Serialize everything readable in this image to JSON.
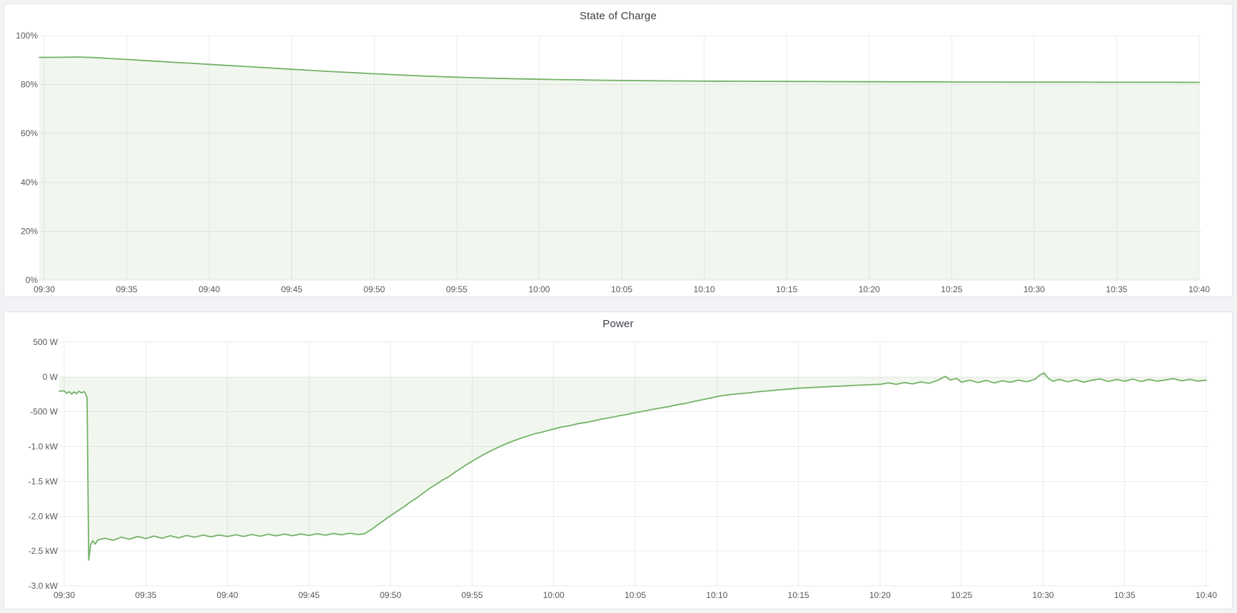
{
  "page": {
    "background_color": "#f2f3f5"
  },
  "panel_style": {
    "background_color": "#ffffff",
    "border_color": "#e0e3e8",
    "title_color": "#3a3f46",
    "tick_color": "#55595f",
    "grid_color": "#eaebed"
  },
  "chart_data": [
    {
      "type": "area",
      "title": "State of Charge",
      "xlabel": "",
      "ylabel": "",
      "unit": "%",
      "legend": "none",
      "grid": true,
      "ylim": [
        0,
        100
      ],
      "x_minutes_domain": [
        -0.3,
        70
      ],
      "line_color": "#73b266",
      "fill_color": "rgba(115,178,102,0.10)",
      "x_ticks": [
        {
          "t": 0,
          "label": "09:30"
        },
        {
          "t": 5,
          "label": "09:35"
        },
        {
          "t": 10,
          "label": "09:40"
        },
        {
          "t": 15,
          "label": "09:45"
        },
        {
          "t": 20,
          "label": "09:50"
        },
        {
          "t": 25,
          "label": "09:55"
        },
        {
          "t": 30,
          "label": "10:00"
        },
        {
          "t": 35,
          "label": "10:05"
        },
        {
          "t": 40,
          "label": "10:10"
        },
        {
          "t": 45,
          "label": "10:15"
        },
        {
          "t": 50,
          "label": "10:20"
        },
        {
          "t": 55,
          "label": "10:25"
        },
        {
          "t": 60,
          "label": "10:30"
        },
        {
          "t": 65,
          "label": "10:35"
        },
        {
          "t": 70,
          "label": "10:40"
        }
      ],
      "y_ticks": [
        {
          "value": 100,
          "label": "100%"
        },
        {
          "value": 80,
          "label": "80%"
        },
        {
          "value": 60,
          "label": "60%"
        },
        {
          "value": 40,
          "label": "40%"
        },
        {
          "value": 20,
          "label": "20%"
        },
        {
          "value": 0,
          "label": "0%"
        }
      ],
      "series": [
        {
          "name": "State of Charge",
          "points": [
            [
              -0.3,
              91.1
            ],
            [
              0,
              91.1
            ],
            [
              1,
              91.15
            ],
            [
              2,
              91.25
            ],
            [
              3,
              91.05
            ],
            [
              4,
              90.65
            ],
            [
              5,
              90.25
            ],
            [
              6,
              89.85
            ],
            [
              7,
              89.45
            ],
            [
              8,
              89.05
            ],
            [
              9,
              88.65
            ],
            [
              10,
              88.25
            ],
            [
              11,
              87.85
            ],
            [
              12,
              87.45
            ],
            [
              13,
              87.05
            ],
            [
              14,
              86.65
            ],
            [
              15,
              86.25
            ],
            [
              16,
              85.85
            ],
            [
              17,
              85.45
            ],
            [
              18,
              85.1
            ],
            [
              19,
              84.75
            ],
            [
              20,
              84.4
            ],
            [
              21,
              84.1
            ],
            [
              22,
              83.8
            ],
            [
              23,
              83.5
            ],
            [
              24,
              83.25
            ],
            [
              25,
              83.0
            ],
            [
              26,
              82.8
            ],
            [
              27,
              82.6
            ],
            [
              28,
              82.45
            ],
            [
              29,
              82.3
            ],
            [
              30,
              82.15
            ],
            [
              31,
              82.05
            ],
            [
              32,
              81.95
            ],
            [
              33,
              81.85
            ],
            [
              34,
              81.75
            ],
            [
              35,
              81.65
            ],
            [
              36,
              81.6
            ],
            [
              37,
              81.55
            ],
            [
              38,
              81.5
            ],
            [
              39,
              81.45
            ],
            [
              40,
              81.4
            ],
            [
              42,
              81.35
            ],
            [
              44,
              81.3
            ],
            [
              46,
              81.25
            ],
            [
              48,
              81.2
            ],
            [
              50,
              81.15
            ],
            [
              52,
              81.1
            ],
            [
              54,
              81.08
            ],
            [
              56,
              81.05
            ],
            [
              58,
              81.02
            ],
            [
              60,
              81.0
            ],
            [
              62,
              80.98
            ],
            [
              64,
              80.96
            ],
            [
              66,
              80.94
            ],
            [
              68,
              80.92
            ],
            [
              70,
              80.9
            ]
          ]
        }
      ]
    },
    {
      "type": "area",
      "title": "Power",
      "xlabel": "",
      "ylabel": "",
      "unit": "W",
      "legend": "none",
      "grid": true,
      "ylim": [
        -3000,
        500
      ],
      "x_minutes_domain": [
        -0.3,
        70
      ],
      "line_color": "#73b266",
      "fill_color": "rgba(115,178,102,0.10)",
      "x_ticks": [
        {
          "t": 0,
          "label": "09:30"
        },
        {
          "t": 5,
          "label": "09:35"
        },
        {
          "t": 10,
          "label": "09:40"
        },
        {
          "t": 15,
          "label": "09:45"
        },
        {
          "t": 20,
          "label": "09:50"
        },
        {
          "t": 25,
          "label": "09:55"
        },
        {
          "t": 30,
          "label": "10:00"
        },
        {
          "t": 35,
          "label": "10:05"
        },
        {
          "t": 40,
          "label": "10:10"
        },
        {
          "t": 45,
          "label": "10:15"
        },
        {
          "t": 50,
          "label": "10:20"
        },
        {
          "t": 55,
          "label": "10:25"
        },
        {
          "t": 60,
          "label": "10:30"
        },
        {
          "t": 65,
          "label": "10:35"
        },
        {
          "t": 70,
          "label": "10:40"
        }
      ],
      "y_ticks": [
        {
          "value": 500,
          "label": "500 W"
        },
        {
          "value": 0,
          "label": "0 W"
        },
        {
          "value": -500,
          "label": "-500 W"
        },
        {
          "value": -1000,
          "label": "-1.0 kW"
        },
        {
          "value": -1500,
          "label": "-1.5 kW"
        },
        {
          "value": -2000,
          "label": "-2.0 kW"
        },
        {
          "value": -2500,
          "label": "-2.5 kW"
        },
        {
          "value": -3000,
          "label": "-3.0 kW"
        }
      ],
      "series": [
        {
          "name": "Power",
          "points": [
            [
              -0.3,
              -205
            ],
            [
              0,
              -200
            ],
            [
              0.15,
              -235
            ],
            [
              0.3,
              -210
            ],
            [
              0.45,
              -245
            ],
            [
              0.6,
              -215
            ],
            [
              0.75,
              -240
            ],
            [
              0.9,
              -205
            ],
            [
              1.05,
              -230
            ],
            [
              1.2,
              -210
            ],
            [
              1.3,
              -235
            ],
            [
              1.4,
              -300
            ],
            [
              1.5,
              -2630
            ],
            [
              1.62,
              -2410
            ],
            [
              1.75,
              -2350
            ],
            [
              1.9,
              -2400
            ],
            [
              2.05,
              -2340
            ],
            [
              2.5,
              -2315
            ],
            [
              3,
              -2345
            ],
            [
              3.5,
              -2300
            ],
            [
              4,
              -2330
            ],
            [
              4.5,
              -2290
            ],
            [
              5,
              -2320
            ],
            [
              5.5,
              -2285
            ],
            [
              6,
              -2315
            ],
            [
              6.5,
              -2280
            ],
            [
              7,
              -2310
            ],
            [
              7.5,
              -2275
            ],
            [
              8,
              -2300
            ],
            [
              8.5,
              -2270
            ],
            [
              9,
              -2295
            ],
            [
              9.5,
              -2268
            ],
            [
              10,
              -2292
            ],
            [
              10.5,
              -2265
            ],
            [
              11,
              -2290
            ],
            [
              11.5,
              -2262
            ],
            [
              12,
              -2286
            ],
            [
              12.5,
              -2258
            ],
            [
              13,
              -2282
            ],
            [
              13.5,
              -2256
            ],
            [
              14,
              -2280
            ],
            [
              14.5,
              -2254
            ],
            [
              15,
              -2276
            ],
            [
              15.5,
              -2250
            ],
            [
              16,
              -2272
            ],
            [
              16.5,
              -2248
            ],
            [
              17,
              -2266
            ],
            [
              17.5,
              -2244
            ],
            [
              18,
              -2262
            ],
            [
              18.4,
              -2252
            ],
            [
              18.8,
              -2195
            ],
            [
              19.2,
              -2125
            ],
            [
              19.6,
              -2058
            ],
            [
              20,
              -1992
            ],
            [
              20.4,
              -1928
            ],
            [
              20.8,
              -1868
            ],
            [
              21.2,
              -1798
            ],
            [
              21.6,
              -1738
            ],
            [
              22,
              -1668
            ],
            [
              22.4,
              -1598
            ],
            [
              22.8,
              -1542
            ],
            [
              23.2,
              -1478
            ],
            [
              23.6,
              -1428
            ],
            [
              24,
              -1358
            ],
            [
              24.4,
              -1298
            ],
            [
              24.8,
              -1238
            ],
            [
              25.2,
              -1182
            ],
            [
              25.6,
              -1128
            ],
            [
              26,
              -1078
            ],
            [
              26.4,
              -1032
            ],
            [
              26.8,
              -988
            ],
            [
              27.2,
              -948
            ],
            [
              27.6,
              -912
            ],
            [
              28,
              -878
            ],
            [
              28.4,
              -848
            ],
            [
              28.8,
              -818
            ],
            [
              29.2,
              -798
            ],
            [
              29.6,
              -772
            ],
            [
              30,
              -748
            ],
            [
              30.5,
              -718
            ],
            [
              31,
              -698
            ],
            [
              31.5,
              -670
            ],
            [
              32,
              -652
            ],
            [
              32.5,
              -628
            ],
            [
              33,
              -602
            ],
            [
              33.5,
              -582
            ],
            [
              34,
              -558
            ],
            [
              34.5,
              -538
            ],
            [
              35,
              -512
            ],
            [
              35.5,
              -492
            ],
            [
              36,
              -468
            ],
            [
              36.5,
              -448
            ],
            [
              37,
              -428
            ],
            [
              37.5,
              -402
            ],
            [
              38,
              -382
            ],
            [
              38.5,
              -358
            ],
            [
              39,
              -332
            ],
            [
              39.5,
              -308
            ],
            [
              40,
              -282
            ],
            [
              40.5,
              -262
            ],
            [
              41,
              -248
            ],
            [
              41.5,
              -238
            ],
            [
              42,
              -228
            ],
            [
              42.5,
              -212
            ],
            [
              43,
              -202
            ],
            [
              43.5,
              -192
            ],
            [
              44,
              -182
            ],
            [
              44.5,
              -172
            ],
            [
              45,
              -162
            ],
            [
              45.5,
              -155
            ],
            [
              46,
              -150
            ],
            [
              46.5,
              -144
            ],
            [
              47,
              -138
            ],
            [
              47.5,
              -132
            ],
            [
              48,
              -126
            ],
            [
              48.5,
              -120
            ],
            [
              49,
              -115
            ],
            [
              49.5,
              -110
            ],
            [
              50,
              -106
            ],
            [
              50.5,
              -85
            ],
            [
              51,
              -105
            ],
            [
              51.5,
              -80
            ],
            [
              52,
              -100
            ],
            [
              52.5,
              -70
            ],
            [
              53,
              -92
            ],
            [
              53.5,
              -52
            ],
            [
              54,
              8
            ],
            [
              54.3,
              -42
            ],
            [
              54.7,
              -22
            ],
            [
              55,
              -75
            ],
            [
              55.5,
              -45
            ],
            [
              56,
              -80
            ],
            [
              56.5,
              -50
            ],
            [
              57,
              -85
            ],
            [
              57.5,
              -55
            ],
            [
              58,
              -75
            ],
            [
              58.5,
              -45
            ],
            [
              59,
              -70
            ],
            [
              59.5,
              -32
            ],
            [
              59.8,
              28
            ],
            [
              60.05,
              58
            ],
            [
              60.3,
              -18
            ],
            [
              60.6,
              -62
            ],
            [
              61,
              -35
            ],
            [
              61.5,
              -70
            ],
            [
              62,
              -40
            ],
            [
              62.5,
              -75
            ],
            [
              63,
              -45
            ],
            [
              63.5,
              -28
            ],
            [
              64,
              -65
            ],
            [
              64.5,
              -35
            ],
            [
              65,
              -62
            ],
            [
              65.5,
              -30
            ],
            [
              66,
              -66
            ],
            [
              66.5,
              -36
            ],
            [
              67,
              -60
            ],
            [
              67.5,
              -42
            ],
            [
              68,
              -24
            ],
            [
              68.5,
              -56
            ],
            [
              69,
              -35
            ],
            [
              69.5,
              -60
            ],
            [
              70,
              -45
            ]
          ]
        }
      ]
    }
  ]
}
